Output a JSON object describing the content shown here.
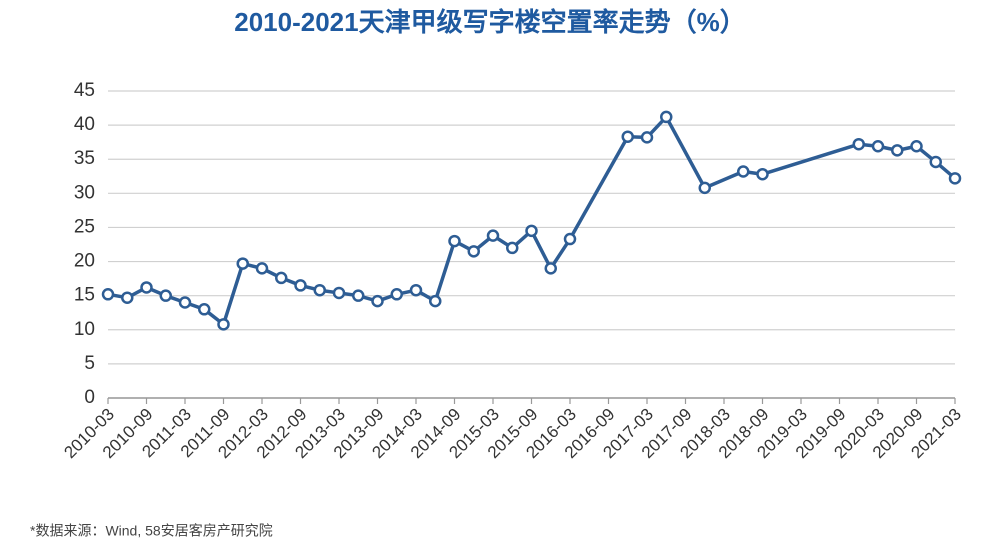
{
  "chart_data": {
    "type": "line",
    "title": "2010-2021天津甲级写字楼空置率走势（%）",
    "footnote": "*数据来源：Wind, 58安居客房产研究院",
    "categories": [
      "2010-03",
      null,
      "2010-09",
      null,
      "2011-03",
      null,
      "2011-09",
      null,
      "2012-03",
      null,
      "2012-09",
      null,
      "2013-03",
      null,
      "2013-09",
      null,
      "2014-03",
      null,
      "2014-09",
      null,
      "2015-03",
      null,
      "2015-09",
      null,
      "2016-03",
      null,
      "2016-09",
      null,
      "2017-03",
      null,
      "2017-09",
      null,
      "2018-03",
      null,
      "2018-09",
      null,
      "2019-03",
      null,
      "2019-09",
      null,
      "2020-03",
      null,
      "2020-09",
      null,
      "2021-03"
    ],
    "series": [
      {
        "color": "#2e5d94",
        "values": [
          15.2,
          14.7,
          16.2,
          15.0,
          14.0,
          13.0,
          10.8,
          19.7,
          19.0,
          17.6,
          16.5,
          15.8,
          15.4,
          15.0,
          14.2,
          15.2,
          15.8,
          14.2,
          23.0,
          21.5,
          23.8,
          22.0,
          24.5,
          19.0,
          23.3,
          null,
          null,
          38.3,
          38.2,
          41.2,
          null,
          30.8,
          null,
          33.2,
          32.8,
          null,
          null,
          null,
          null,
          37.2,
          36.9,
          36.3,
          36.9,
          34.6,
          32.2
        ]
      }
    ],
    "connect_gaps": true,
    "ylim": [
      0,
      45
    ],
    "yticks": [
      0,
      5,
      10,
      15,
      20,
      25,
      30,
      35,
      40,
      45
    ],
    "grid": true
  }
}
